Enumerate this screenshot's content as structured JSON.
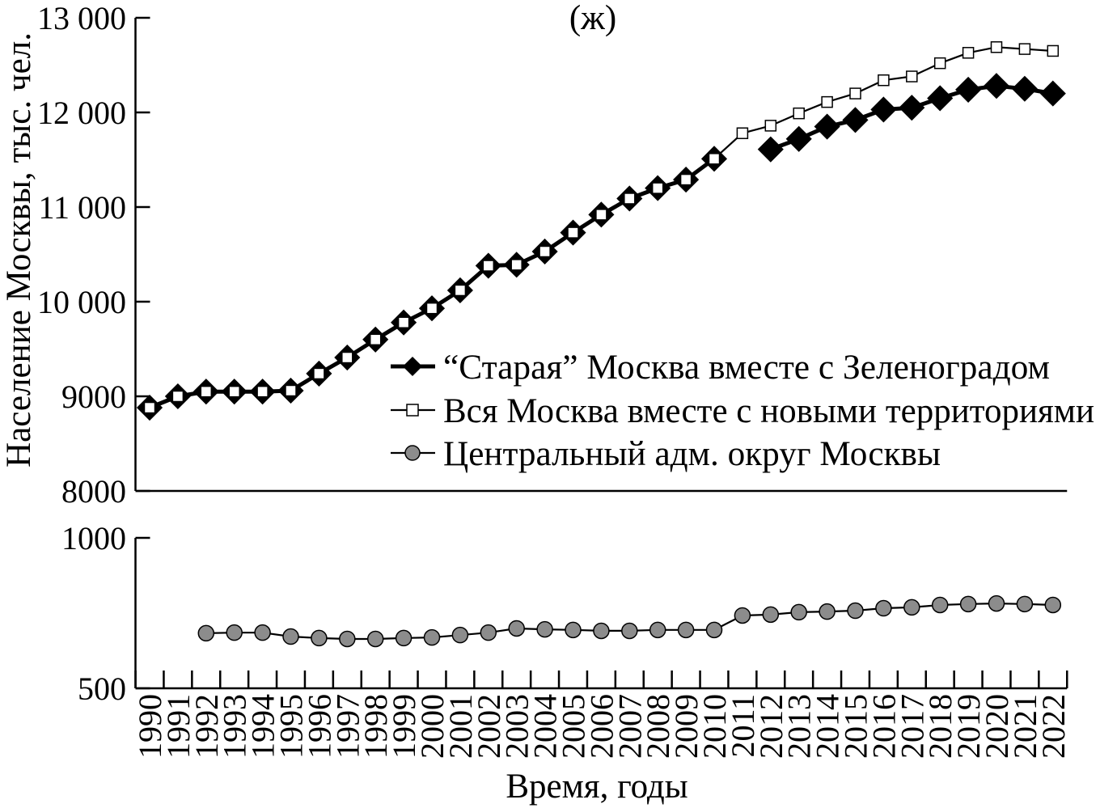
{
  "chart_data": {
    "type": "line",
    "title": "(ж)",
    "xlabel": "Время, годы",
    "ylabel": "Население Москвы, тыс. чел.",
    "axis_break": true,
    "grid": false,
    "legend": "center-right",
    "x": [
      1990,
      1991,
      1992,
      1993,
      1994,
      1995,
      1996,
      1997,
      1998,
      1999,
      2000,
      2001,
      2002,
      2003,
      2004,
      2005,
      2006,
      2007,
      2008,
      2009,
      2010,
      2011,
      2012,
      2013,
      2014,
      2015,
      2016,
      2017,
      2018,
      2019,
      2020,
      2021,
      2022
    ],
    "panels": [
      {
        "ylim": [
          8000,
          13000
        ],
        "yticks": [
          8000,
          9000,
          10000,
          11000,
          12000,
          13000
        ],
        "ytick_labels": [
          "8000",
          "9000",
          "10 000",
          "11 000",
          "12 000",
          "13 000"
        ],
        "series": [
          {
            "name": "“Старая” Москва вместе с Зеленоградом",
            "marker": "diamond",
            "line_color": "#000000",
            "marker_fill": "#000000",
            "values": [
              8880,
              9000,
              9050,
              9050,
              9050,
              9060,
              9240,
              9410,
              9600,
              9780,
              9930,
              10120,
              10380,
              10390,
              10530,
              10730,
              10920,
              11090,
              11200,
              11290,
              11510,
              null,
              11610,
              11720,
              11850,
              11920,
              12030,
              12050,
              12150,
              12240,
              12280,
              12250,
              12200
            ]
          },
          {
            "name": "Вся Москва вместе с новыми территориями",
            "marker": "square",
            "line_color": "#000000",
            "marker_fill": "#ffffff",
            "values": [
              8880,
              9000,
              9050,
              9050,
              9050,
              9060,
              9240,
              9410,
              9600,
              9780,
              9930,
              10120,
              10380,
              10390,
              10530,
              10730,
              10920,
              11090,
              11200,
              11290,
              11510,
              11780,
              11860,
              11990,
              12110,
              12200,
              12340,
              12380,
              12520,
              12630,
              12690,
              12670,
              12650
            ]
          }
        ]
      },
      {
        "ylim": [
          500,
          1000
        ],
        "yticks": [
          500,
          1000
        ],
        "ytick_labels": [
          "500",
          "1000"
        ],
        "series": [
          {
            "name": "Центральный адм. округ Москвы",
            "marker": "circle",
            "line_color": "#000000",
            "marker_fill": "#8c8c8c",
            "values": [
              null,
              null,
              683,
              685,
              685,
              672,
              667,
              664,
              664,
              667,
              669,
              677,
              685,
              699,
              696,
              694,
              691,
              691,
              694,
              694,
              694,
              742,
              745,
              753,
              755,
              758,
              766,
              769,
              777,
              780,
              782,
              780,
              777
            ]
          }
        ]
      }
    ]
  }
}
